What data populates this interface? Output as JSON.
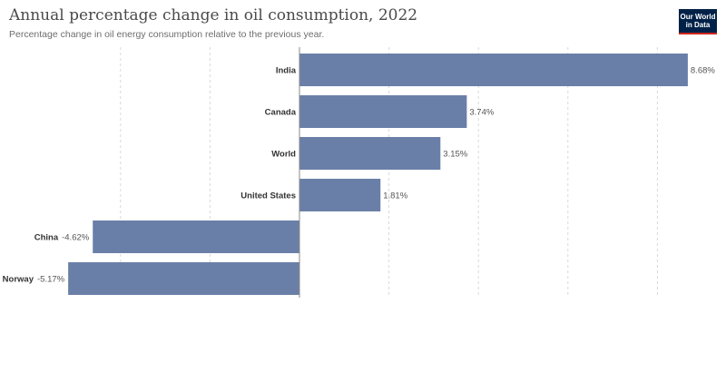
{
  "header": {
    "title": "Annual percentage change in oil consumption, 2022",
    "subtitle": "Percentage change in oil energy consumption relative to the previous year.",
    "logo_line1": "Our World",
    "logo_line2": "in Data"
  },
  "colors": {
    "bar": "#6a7fa8",
    "grid": "#d9d9d9",
    "logo_bg": "#002147",
    "logo_accent": "#ce261e"
  },
  "chart_data": {
    "type": "bar",
    "orientation": "horizontal",
    "title": "Annual percentage change in oil consumption, 2022",
    "subtitle": "Percentage change in oil energy consumption relative to the previous year.",
    "categories": [
      "India",
      "Canada",
      "World",
      "United States",
      "China",
      "Norway"
    ],
    "values": [
      8.68,
      3.74,
      3.15,
      1.81,
      -4.62,
      -5.17
    ],
    "value_labels": [
      "8.68%",
      "3.74%",
      "3.15%",
      "1.81%",
      "-4.62%",
      "-5.17%"
    ],
    "unit": "%",
    "xlim": [
      -6,
      9
    ],
    "gridlines": [
      -4,
      -2,
      2,
      4,
      6,
      8
    ],
    "grid": true
  }
}
